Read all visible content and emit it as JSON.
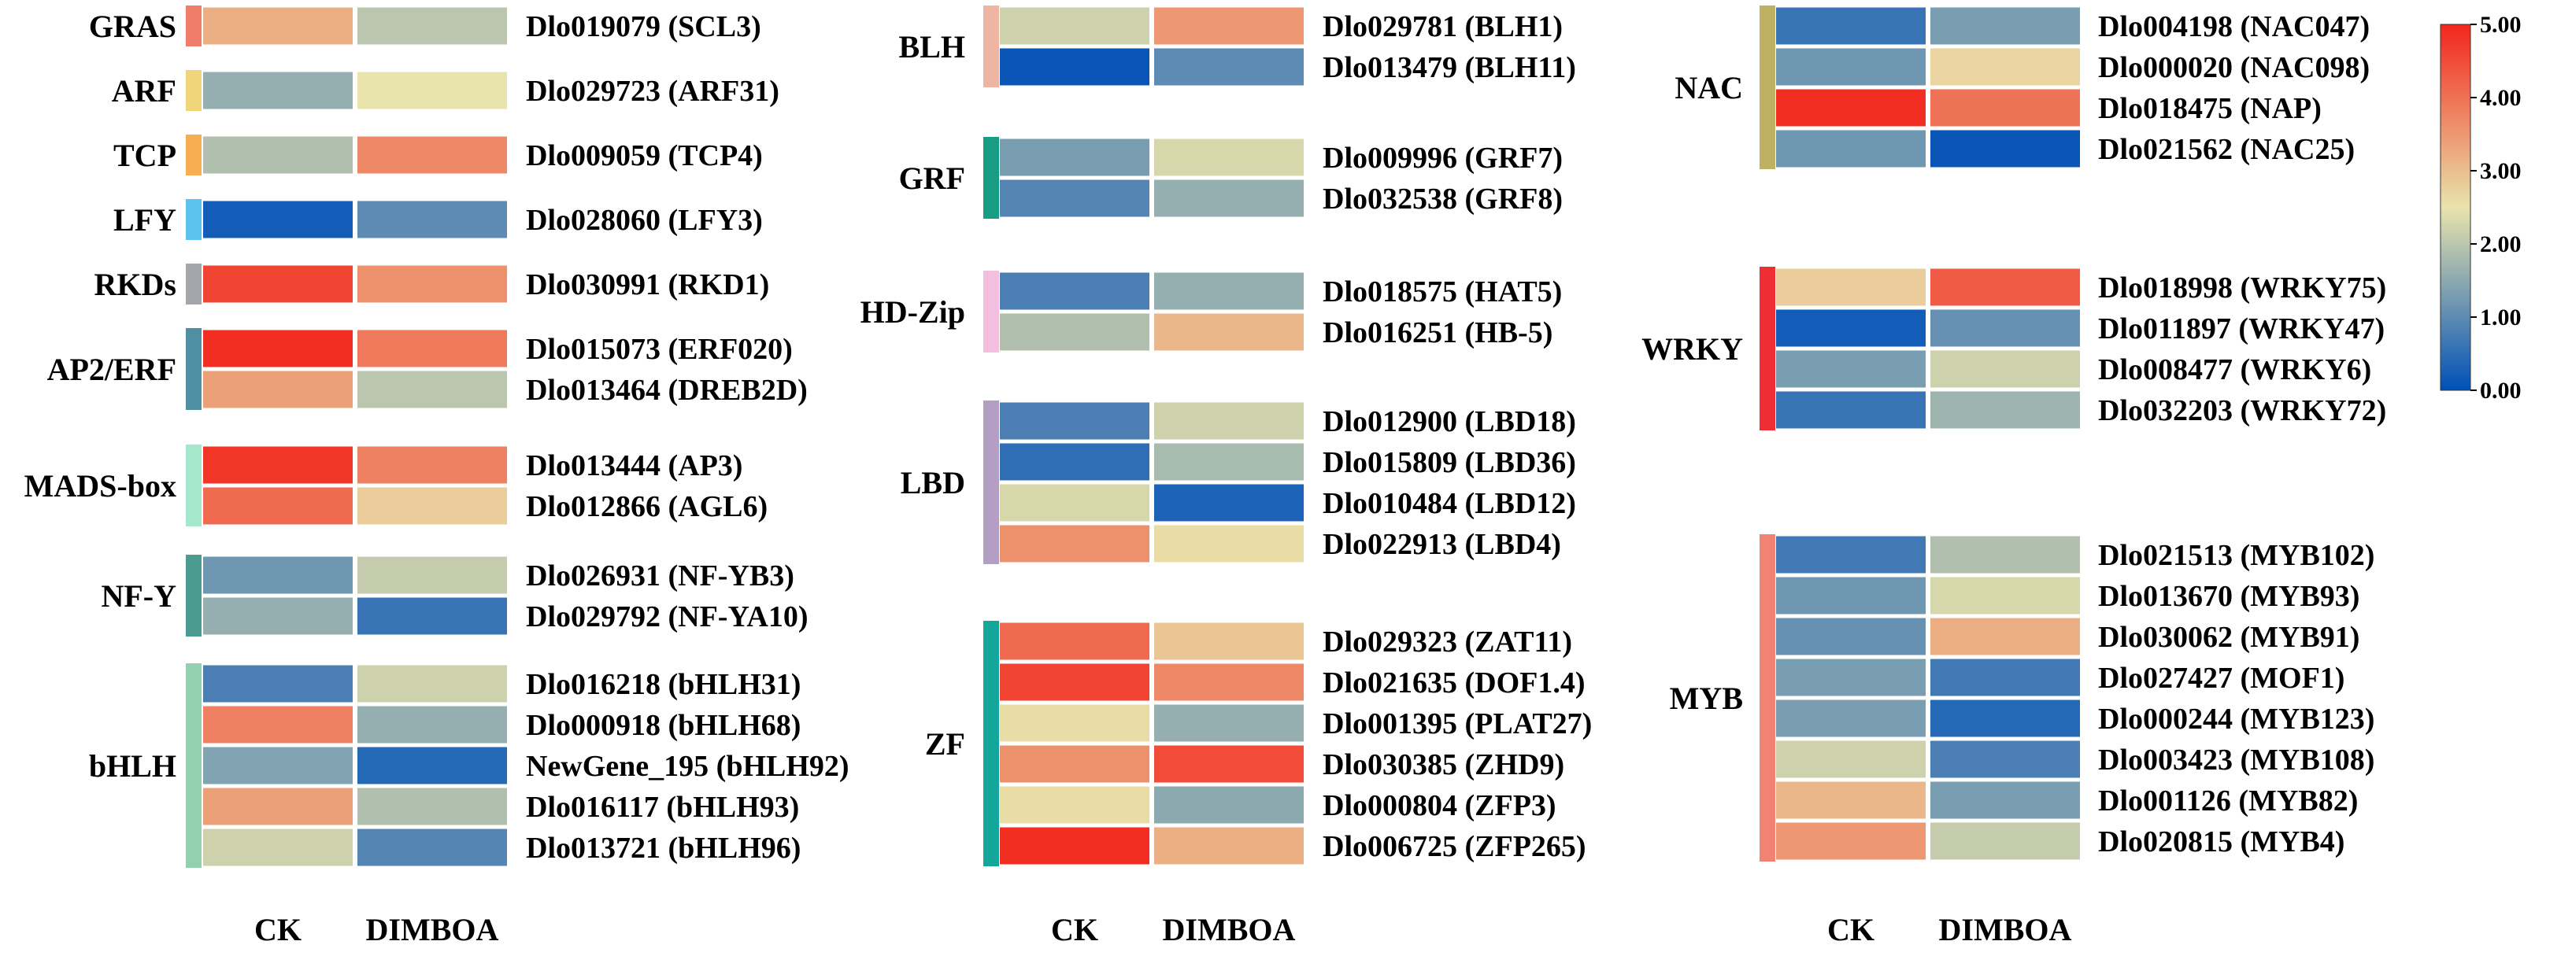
{
  "chart_data": {
    "type": "heatmap",
    "columns": [
      "CK",
      "DIMBOA"
    ],
    "color_scale": {
      "min": 0.0,
      "max": 5.0,
      "ticks": [
        "0.00",
        "1.00",
        "2.00",
        "3.00",
        "4.00",
        "5.00"
      ],
      "stops": [
        "#0050b8",
        "#e9e4ab",
        "#f2261c"
      ]
    },
    "panels": [
      {
        "families": [
          {
            "name": "GRAS",
            "color": "#f07c6a",
            "genes": [
              {
                "label": "Dlo019079 (SCL3)",
                "values": [
                  3.2,
                  2.0
                ]
              }
            ]
          },
          {
            "name": "ARF",
            "color": "#f0d57a",
            "genes": [
              {
                "label": "Dlo029723 (ARF31)",
                "values": [
                  1.6,
                  2.5
                ]
              }
            ]
          },
          {
            "name": "TCP",
            "color": "#f7ae52",
            "genes": [
              {
                "label": "Dlo009059 (TCP4)",
                "values": [
                  1.9,
                  3.7
                ]
              }
            ]
          },
          {
            "name": "LFY",
            "color": "#5cc3ee",
            "genes": [
              {
                "label": "Dlo028060 (LFY3)",
                "values": [
                  0.2,
                  1.0
                ]
              }
            ]
          },
          {
            "name": "RKDs",
            "color": "#a3a7ab",
            "genes": [
              {
                "label": "Dlo030991 (RKD1)",
                "values": [
                  4.6,
                  3.6
                ]
              }
            ]
          },
          {
            "name": "AP2/ERF",
            "color": "#4e8fa4",
            "genes": [
              {
                "label": "Dlo015073 (ERF020)",
                "values": [
                  4.9,
                  3.9
                ]
              },
              {
                "label": "Dlo013464 (DREB2D)",
                "values": [
                  3.4,
                  2.0
                ]
              }
            ]
          },
          {
            "name": "MADS-box",
            "color": "#a6e8cc",
            "genes": [
              {
                "label": "Dlo013444 (AP3)",
                "values": [
                  4.8,
                  3.8
                ]
              },
              {
                "label": "Dlo012866 (AGL6)",
                "values": [
                  4.1,
                  2.8
                ]
              }
            ]
          },
          {
            "name": "NF-Y",
            "color": "#4c9b90",
            "genes": [
              {
                "label": "Dlo026931 (NF-YB3)",
                "values": [
                  1.2,
                  2.1
                ]
              },
              {
                "label": "Dlo029792 (NF-YA10)",
                "values": [
                  1.6,
                  0.6
                ]
              }
            ]
          },
          {
            "name": "bHLH",
            "color": "#94d0b0",
            "genes": [
              {
                "label": "Dlo016218 (bHLH31)",
                "values": [
                  0.8,
                  2.2
                ]
              },
              {
                "label": "Dlo000918 (bHLH68)",
                "values": [
                  3.8,
                  1.6
                ]
              },
              {
                "label": "NewGene_195 (bHLH92)",
                "values": [
                  1.4,
                  0.4
                ]
              },
              {
                "label": "Dlo016117 (bHLH93)",
                "values": [
                  3.4,
                  1.9
                ]
              },
              {
                "label": "Dlo013721 (bHLH96)",
                "values": [
                  2.2,
                  0.9
                ]
              }
            ]
          }
        ]
      },
      {
        "families": [
          {
            "name": "BLH",
            "color": "#efb5a3",
            "genes": [
              {
                "label": "Dlo029781 (BLH1)",
                "values": [
                  2.2,
                  3.5
                ]
              },
              {
                "label": "Dlo013479 (BLH11)",
                "values": [
                  0.1,
                  1.0
                ]
              }
            ]
          },
          {
            "name": "GRF",
            "color": "#179d84",
            "genes": [
              {
                "label": "Dlo009996 (GRF7)",
                "values": [
                  1.3,
                  2.3
                ]
              },
              {
                "label": "Dlo032538 (GRF8)",
                "values": [
                  0.9,
                  1.6
                ]
              }
            ]
          },
          {
            "name": "HD-Zip",
            "color": "#f4bedf",
            "genes": [
              {
                "label": "Dlo018575 (HAT5)",
                "values": [
                  0.8,
                  1.6
                ]
              },
              {
                "label": "Dlo016251 (HB-5)",
                "values": [
                  1.9,
                  3.1
                ]
              }
            ]
          },
          {
            "name": "LBD",
            "color": "#b39fc4",
            "genes": [
              {
                "label": "Dlo012900 (LBD18)",
                "values": [
                  0.8,
                  2.2
                ]
              },
              {
                "label": "Dlo015809 (LBD36)",
                "values": [
                  0.5,
                  1.8
                ]
              },
              {
                "label": "Dlo010484 (LBD12)",
                "values": [
                  2.3,
                  0.3
                ]
              },
              {
                "label": "Dlo022913 (LBD4)",
                "values": [
                  3.6,
                  2.6
                ]
              }
            ]
          },
          {
            "name": "ZF",
            "color": "#12a79a",
            "genes": [
              {
                "label": "Dlo029323 (ZAT11)",
                "values": [
                  4.1,
                  2.9
                ]
              },
              {
                "label": "Dlo021635 (DOF1.4)",
                "values": [
                  4.6,
                  3.7
                ]
              },
              {
                "label": "Dlo001395 (PLAT27)",
                "values": [
                  2.6,
                  1.6
                ]
              },
              {
                "label": "Dlo030385 (ZHD9)",
                "values": [
                  3.6,
                  4.5
                ]
              },
              {
                "label": "Dlo000804 (ZFP3)",
                "values": [
                  2.6,
                  1.5
                ]
              },
              {
                "label": "Dlo006725 (ZFP265)",
                "values": [
                  4.9,
                  3.2
                ]
              }
            ]
          }
        ]
      },
      {
        "families": [
          {
            "name": "NAC",
            "color": "#c0b063",
            "genes": [
              {
                "label": "Dlo004198 (NAC047)",
                "values": [
                  0.6,
                  1.3
                ]
              },
              {
                "label": "Dlo000020 (NAC098)",
                "values": [
                  1.2,
                  2.7
                ]
              },
              {
                "label": "Dlo018475 (NAP)",
                "values": [
                  4.9,
                  4.0
                ]
              },
              {
                "label": "Dlo021562 (NAC25)",
                "values": [
                  1.2,
                  0.1
                ]
              }
            ]
          },
          {
            "name": "WRKY",
            "color": "#ef2e34",
            "genes": [
              {
                "label": "Dlo018998 (WRKY75)",
                "values": [
                  2.8,
                  4.3
                ]
              },
              {
                "label": "Dlo011897 (WRKY47)",
                "values": [
                  0.2,
                  1.1
                ]
              },
              {
                "label": "Dlo008477 (WRKY6)",
                "values": [
                  1.3,
                  2.2
                ]
              },
              {
                "label": "Dlo032203 (WRKY72)",
                "values": [
                  0.6,
                  1.7
                ]
              }
            ]
          },
          {
            "name": "MYB",
            "color": "#f08374",
            "genes": [
              {
                "label": "Dlo021513 (MYB102)",
                "values": [
                  0.7,
                  1.9
                ]
              },
              {
                "label": "Dlo013670 (MYB93)",
                "values": [
                  1.2,
                  2.3
                ]
              },
              {
                "label": "Dlo030062 (MYB91)",
                "values": [
                  1.1,
                  3.2
                ]
              },
              {
                "label": "Dlo027427 (MOF1)",
                "values": [
                  1.3,
                  0.7
                ]
              },
              {
                "label": "Dlo000244 (MYB123)",
                "values": [
                  1.3,
                  0.4
                ]
              },
              {
                "label": "Dlo003423 (MYB108)",
                "values": [
                  2.2,
                  0.8
                ]
              },
              {
                "label": "Dlo001126 (MYB82)",
                "values": [
                  3.1,
                  1.3
                ]
              },
              {
                "label": "Dlo020815 (MYB4)",
                "values": [
                  3.5,
                  2.1
                ]
              }
            ]
          }
        ]
      }
    ]
  }
}
